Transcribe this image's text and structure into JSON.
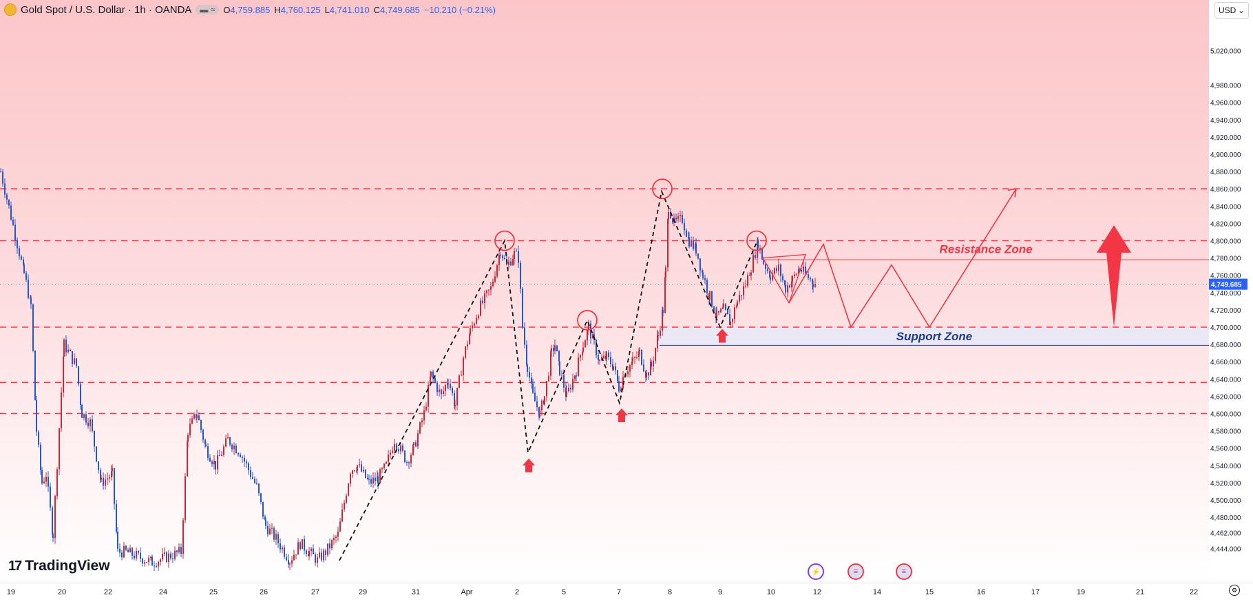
{
  "header": {
    "symbol": "Gold Spot / U.S. Dollar · 1h · OANDA",
    "open_label": "O",
    "open": "4,759.885",
    "high_label": "H",
    "high": "4,760.125",
    "low_label": "L",
    "low": "4,741.010",
    "close_label": "C",
    "close": "4,749.685",
    "change": "−10.210 (−0.21%)",
    "pill": "≈"
  },
  "currency": {
    "value": "USD",
    "icon": "chevron-down-icon"
  },
  "branding": {
    "name": "TradingView"
  },
  "colors": {
    "accent_red": "#f23645",
    "candle_blue": "#2157d6",
    "support_fill": "#e6e9f7",
    "label_blue": "#1e3a8a"
  },
  "events": [
    {
      "icon": "lightning-icon",
      "x_index": 1178
    },
    {
      "icon": "us-flag-icon",
      "x_index": 1242
    },
    {
      "icon": "us-flag-icon",
      "x_index": 1313
    }
  ],
  "chart_data": {
    "type": "candlestick",
    "title": "Gold Spot / U.S. Dollar",
    "timeframe": "1h",
    "last_price": 4749.685,
    "last_price_label": "4,749.685",
    "y_ticks": [
      "5,020.000",
      "4,980.000",
      "4,960.000",
      "4,940.000",
      "4,920.000",
      "4,900.000",
      "4,880.000",
      "4,860.000",
      "4,840.000",
      "4,820.000",
      "4,800.000",
      "4,780.000",
      "4,760.000",
      "4,740.000",
      "4,720.000",
      "4,700.000",
      "4,680.000",
      "4,660.000",
      "4,640.000",
      "4,620.000",
      "4,600.000",
      "4,580.000",
      "4,560.000",
      "4,540.000",
      "4,520.000",
      "4,500.000",
      "4,480.000",
      "4,462.000",
      "4,444.000"
    ],
    "y_tick_values": [
      5020,
      4980,
      4960,
      4940,
      4920,
      4900,
      4880,
      4860,
      4840,
      4820,
      4800,
      4780,
      4760,
      4740,
      4720,
      4700,
      4680,
      4660,
      4640,
      4620,
      4600,
      4580,
      4560,
      4540,
      4520,
      4500,
      4480,
      4462,
      4444
    ],
    "x_ticks": [
      "19",
      "20",
      "22",
      "24",
      "25",
      "26",
      "27",
      "29",
      "31",
      "Apr",
      "2",
      "5",
      "7",
      "8",
      "9",
      "10",
      "12",
      "14",
      "15",
      "16",
      "17",
      "19",
      "21",
      "22"
    ],
    "horizontal_levels": [
      4860,
      4800,
      4700,
      4636,
      4600
    ],
    "resistance_zone": {
      "label": "Resistance Zone",
      "from": 4778,
      "to": 4800
    },
    "support_zone": {
      "label": "Support Zone",
      "from": 4679,
      "to": 4700
    },
    "swing_path": [
      [
        0,
        4880
      ],
      [
        34,
        4762
      ],
      [
        44,
        4725
      ],
      [
        52,
        4580
      ],
      [
        60,
        4520
      ],
      [
        66,
        4530
      ],
      [
        76,
        4460
      ],
      [
        92,
        4680
      ],
      [
        110,
        4655
      ],
      [
        118,
        4600
      ],
      [
        130,
        4590
      ],
      [
        146,
        4520
      ],
      [
        162,
        4530
      ],
      [
        170,
        4440
      ],
      [
        182,
        4440
      ],
      [
        220,
        4428
      ],
      [
        262,
        4440
      ],
      [
        272,
        4580
      ],
      [
        285,
        4600
      ],
      [
        298,
        4560
      ],
      [
        312,
        4540
      ],
      [
        330,
        4570
      ],
      [
        348,
        4555
      ],
      [
        372,
        4515
      ],
      [
        385,
        4470
      ],
      [
        400,
        4455
      ],
      [
        420,
        4430
      ],
      [
        435,
        4450
      ],
      [
        448,
        4440
      ],
      [
        460,
        4430
      ],
      [
        472,
        4440
      ],
      [
        490,
        4460
      ],
      [
        508,
        4535
      ],
      [
        518,
        4540
      ],
      [
        535,
        4520
      ],
      [
        548,
        4525
      ],
      [
        560,
        4540
      ],
      [
        572,
        4570
      ],
      [
        590,
        4545
      ],
      [
        600,
        4560
      ],
      [
        615,
        4600
      ],
      [
        625,
        4645
      ],
      [
        640,
        4620
      ],
      [
        650,
        4640
      ],
      [
        660,
        4610
      ],
      [
        672,
        4665
      ],
      [
        682,
        4695
      ],
      [
        694,
        4720
      ],
      [
        712,
        4745
      ],
      [
        726,
        4790
      ],
      [
        735,
        4770
      ],
      [
        746,
        4785
      ],
      [
        752,
        4780
      ],
      [
        758,
        4700
      ],
      [
        765,
        4655
      ],
      [
        773,
        4620
      ],
      [
        783,
        4600
      ],
      [
        790,
        4620
      ],
      [
        800,
        4670
      ],
      [
        805,
        4680
      ],
      [
        812,
        4650
      ],
      [
        822,
        4620
      ],
      [
        836,
        4650
      ],
      [
        846,
        4680
      ],
      [
        854,
        4700
      ],
      [
        862,
        4680
      ],
      [
        870,
        4660
      ],
      [
        880,
        4665
      ],
      [
        890,
        4655
      ],
      [
        898,
        4630
      ],
      [
        908,
        4650
      ],
      [
        918,
        4660
      ],
      [
        928,
        4670
      ],
      [
        938,
        4645
      ],
      [
        945,
        4655
      ],
      [
        955,
        4690
      ],
      [
        962,
        4720
      ],
      [
        966,
        4765
      ],
      [
        970,
        4840
      ],
      [
        978,
        4820
      ],
      [
        990,
        4825
      ],
      [
        1000,
        4800
      ],
      [
        1010,
        4790
      ],
      [
        1020,
        4760
      ],
      [
        1030,
        4735
      ],
      [
        1040,
        4712
      ],
      [
        1050,
        4720
      ],
      [
        1060,
        4705
      ],
      [
        1070,
        4730
      ],
      [
        1082,
        4750
      ],
      [
        1090,
        4770
      ],
      [
        1100,
        4798
      ],
      [
        1108,
        4775
      ],
      [
        1118,
        4760
      ],
      [
        1130,
        4768
      ],
      [
        1140,
        4745
      ],
      [
        1150,
        4755
      ],
      [
        1160,
        4768
      ],
      [
        1170,
        4760
      ],
      [
        1180,
        4752
      ],
      [
        1186,
        4749.685
      ]
    ],
    "projection_path": [
      [
        1146,
        4728
      ],
      [
        1196,
        4796
      ],
      [
        1236,
        4700
      ],
      [
        1295,
        4772
      ],
      [
        1350,
        4700
      ],
      [
        1476,
        4860
      ]
    ],
    "dashed_swings": [
      [
        493,
        4430
      ],
      [
        733,
        4800
      ],
      [
        767,
        4555
      ],
      [
        853,
        4708
      ],
      [
        900,
        4612
      ],
      [
        961,
        4857
      ],
      [
        1046,
        4700
      ],
      [
        1099,
        4798
      ]
    ],
    "triangle": [
      [
        1108,
        4780
      ],
      [
        1146,
        4728
      ],
      [
        1170,
        4784
      ]
    ],
    "swing_circles": [
      [
        733,
        4800
      ],
      [
        853,
        4708
      ],
      [
        962,
        4860
      ],
      [
        1099,
        4800
      ]
    ],
    "up_arrows": [
      [
        768,
        4540
      ],
      [
        903,
        4598
      ],
      [
        1049,
        4690
      ]
    ],
    "big_arrow": {
      "x": 1618,
      "from": 4700,
      "to": 4818
    },
    "xlabel": "",
    "ylabel": ""
  }
}
